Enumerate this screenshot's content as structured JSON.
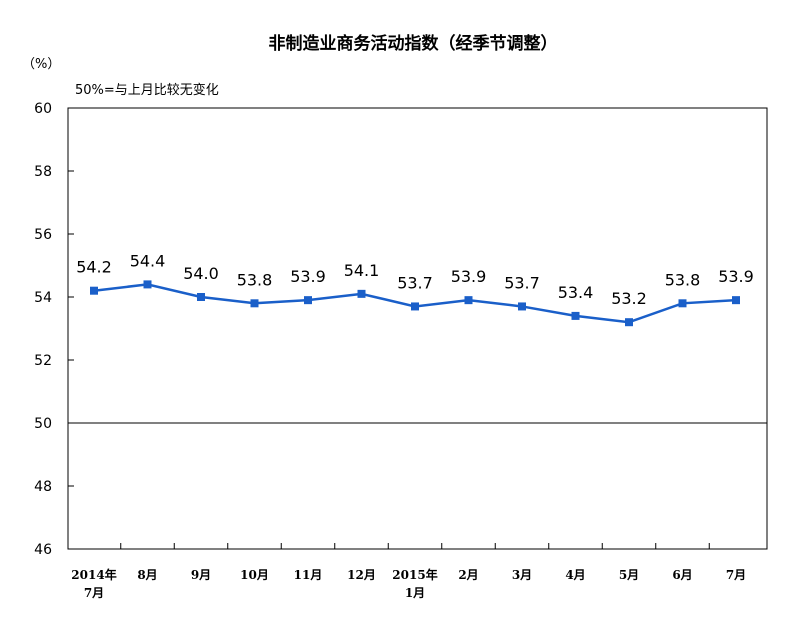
{
  "chart_data": {
    "type": "line",
    "title": "非制造业商务活动指数（经季节调整）",
    "ylabel": "（%）",
    "note": "50%=与上月比较无变化",
    "ylim": [
      46,
      60
    ],
    "yticks": [
      "60",
      "58",
      "56",
      "54",
      "52",
      "50",
      "48",
      "46"
    ],
    "categories": [
      [
        "2014年",
        "7月"
      ],
      [
        "8月"
      ],
      [
        "9月"
      ],
      [
        "10月"
      ],
      [
        "11月"
      ],
      [
        "12月"
      ],
      [
        "2015年",
        "1月"
      ],
      [
        "2月"
      ],
      [
        "3月"
      ],
      [
        "4月"
      ],
      [
        "5月"
      ],
      [
        "6月"
      ],
      [
        "7月"
      ]
    ],
    "values": [
      54.2,
      54.4,
      54.0,
      53.8,
      53.9,
      54.1,
      53.7,
      53.9,
      53.7,
      53.4,
      53.2,
      53.8,
      53.9
    ],
    "labels": [
      "54.2",
      "54.4",
      "54.0",
      "53.8",
      "53.9",
      "54.1",
      "53.7",
      "53.9",
      "53.7",
      "53.4",
      "53.2",
      "53.8",
      "53.9"
    ],
    "reference_line": 50,
    "line_color": "#1a5fc9",
    "legend": "none",
    "grid": false
  }
}
